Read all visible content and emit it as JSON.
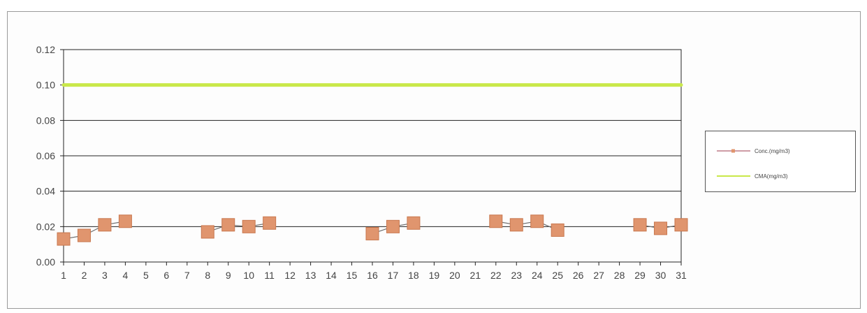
{
  "chart_data": {
    "type": "line",
    "categories": [
      "1",
      "2",
      "3",
      "4",
      "5",
      "6",
      "7",
      "8",
      "9",
      "10",
      "11",
      "12",
      "13",
      "14",
      "15",
      "16",
      "17",
      "18",
      "19",
      "20",
      "21",
      "22",
      "23",
      "24",
      "25",
      "26",
      "27",
      "28",
      "29",
      "30",
      "31"
    ],
    "series": [
      {
        "name": "Conc.(mg/m3)",
        "values": [
          0.013,
          0.015,
          0.021,
          0.023,
          null,
          null,
          null,
          0.017,
          0.021,
          0.02,
          0.022,
          null,
          null,
          null,
          null,
          0.016,
          0.02,
          0.022,
          null,
          null,
          null,
          0.023,
          0.021,
          0.023,
          0.018,
          null,
          null,
          null,
          0.021,
          0.019,
          0.021
        ]
      },
      {
        "name": "CMA(mg/m3)",
        "values": [
          0.1,
          0.1,
          0.1,
          0.1,
          0.1,
          0.1,
          0.1,
          0.1,
          0.1,
          0.1,
          0.1,
          0.1,
          0.1,
          0.1,
          0.1,
          0.1,
          0.1,
          0.1,
          0.1,
          0.1,
          0.1,
          0.1,
          0.1,
          0.1,
          0.1,
          0.1,
          0.1,
          0.1,
          0.1,
          0.1,
          0.1
        ]
      }
    ],
    "y_ticks": [
      "0.00",
      "0.02",
      "0.04",
      "0.06",
      "0.08",
      "0.10",
      "0.12"
    ],
    "ylim": [
      0,
      0.12
    ],
    "grid": true,
    "legend_position": "right",
    "colors": {
      "conc_marker": "#e0956e",
      "conc_line": "#6e6e6e",
      "conc_legend_line": "#b06070",
      "cma_line": "#c9e84a",
      "grid": "#222222",
      "axis_text": "#444444"
    }
  }
}
